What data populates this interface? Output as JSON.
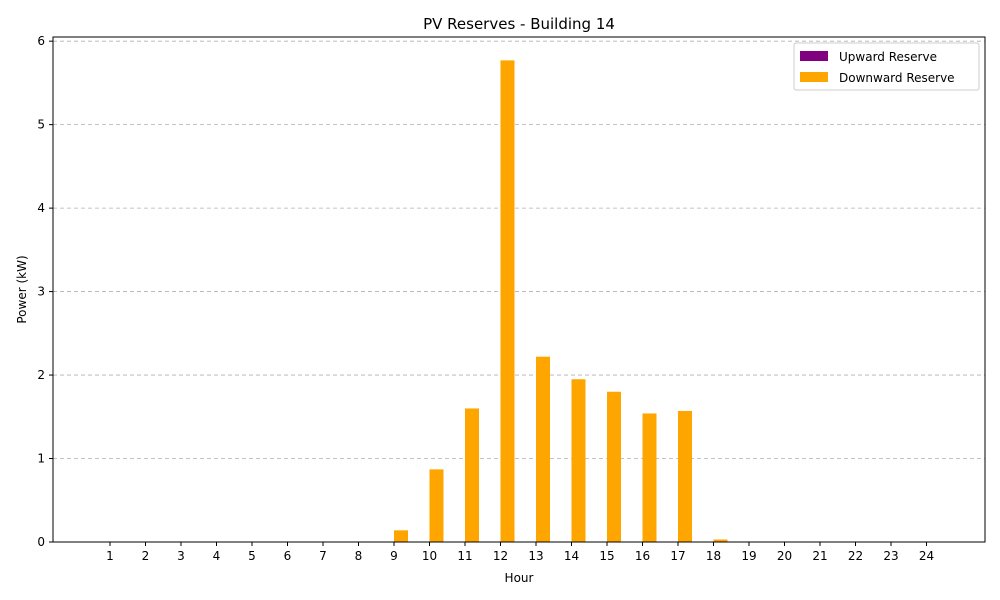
{
  "chart_data": {
    "type": "bar",
    "title": "PV Reserves - Building 14",
    "xlabel": "Hour",
    "ylabel": "Power (kW)",
    "categories": [
      "1",
      "2",
      "3",
      "4",
      "5",
      "6",
      "7",
      "8",
      "9",
      "10",
      "11",
      "12",
      "13",
      "14",
      "15",
      "16",
      "17",
      "18",
      "19",
      "20",
      "21",
      "22",
      "23",
      "24"
    ],
    "series": [
      {
        "name": "Upward Reserve",
        "color": "#800080",
        "values": [
          0,
          0,
          0,
          0,
          0,
          0,
          0,
          0,
          0,
          0,
          0,
          0,
          0,
          0,
          0,
          0,
          0,
          0,
          0,
          0,
          0,
          0,
          0,
          0
        ]
      },
      {
        "name": "Downward Reserve",
        "color": "#FFA500",
        "values": [
          0,
          0,
          0,
          0,
          0,
          0,
          0,
          0,
          0.14,
          0.87,
          1.6,
          5.77,
          2.22,
          1.95,
          1.8,
          1.54,
          1.57,
          0.03,
          0,
          0,
          0,
          0,
          0,
          0
        ]
      }
    ],
    "ylim": [
      0,
      6.05
    ],
    "yticks": [
      0,
      1,
      2,
      3,
      4,
      5,
      6
    ],
    "grid": "y-dashed",
    "legend_position": "top-right"
  }
}
